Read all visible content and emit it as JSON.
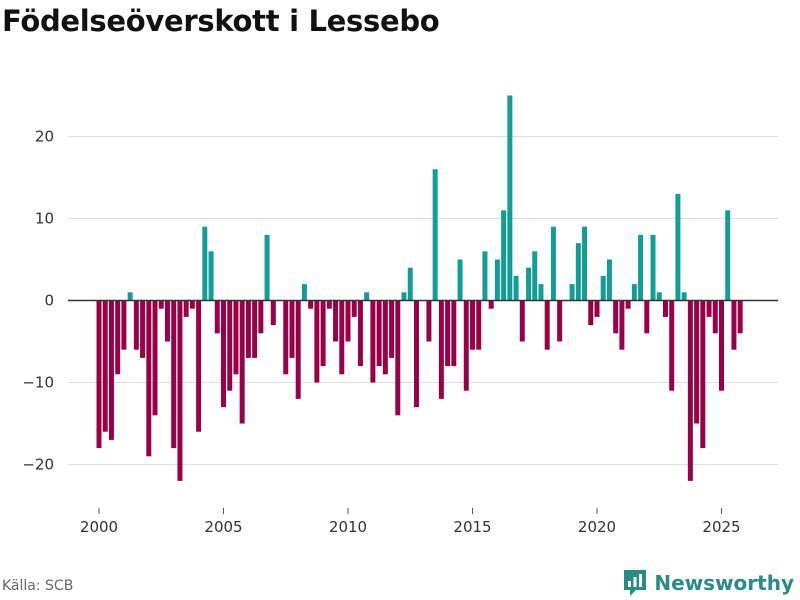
{
  "title": "Födelseöverskott i Lessebo",
  "source": "Källa: SCB",
  "brand": "Newsworthy",
  "colors": {
    "positive": "#119e96",
    "negative": "#9a0045",
    "grid": "#dddddd",
    "zero": "#333333",
    "brand": "#2a8c86"
  },
  "chart_data": {
    "type": "bar",
    "title": "Födelseöverskott i Lessebo",
    "xlabel": "",
    "ylabel": "",
    "frequency": "monthly-quarterly",
    "x_start": 2000.0,
    "x_step": 0.25,
    "xlim": [
      1999.25,
      2027.25
    ],
    "ylim": [
      -25,
      27
    ],
    "x_ticks": [
      2000,
      2005,
      2010,
      2015,
      2020,
      2025
    ],
    "y_ticks": [
      -20,
      -10,
      0,
      10,
      20
    ],
    "values": [
      -18,
      -16,
      -17,
      -9,
      -6,
      1,
      -6,
      -7,
      -19,
      -14,
      -1,
      -5,
      -18,
      -22,
      -2,
      -1,
      -16,
      9,
      6,
      -4,
      -13,
      -11,
      -9,
      -15,
      -7,
      -7,
      -4,
      8,
      -3,
      0,
      -9,
      -7,
      -12,
      2,
      -1,
      -10,
      -8,
      -1,
      -5,
      -9,
      -5,
      -2,
      -8,
      1,
      -10,
      -8,
      -9,
      -7,
      -14,
      1,
      4,
      -13,
      0,
      -5,
      16,
      -12,
      -8,
      -8,
      5,
      -11,
      -6,
      -6,
      6,
      -1,
      5,
      11,
      25,
      3,
      -5,
      4,
      6,
      2,
      -6,
      9,
      -5,
      0,
      2,
      7,
      9,
      -3,
      -2,
      3,
      5,
      -4,
      -6,
      -1,
      2,
      8,
      -4,
      8,
      1,
      -2,
      -11,
      13,
      1,
      -22,
      -15,
      -18,
      -2,
      -4,
      -11,
      11,
      -6,
      -4
    ]
  }
}
